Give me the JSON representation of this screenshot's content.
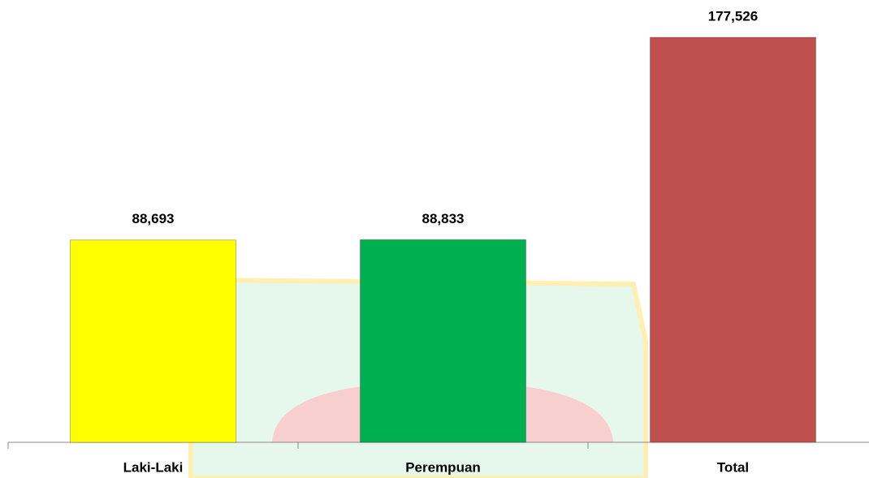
{
  "chart_data": {
    "type": "bar",
    "categories": [
      "Laki-Laki",
      "Perempuan",
      "Total"
    ],
    "values": [
      88693,
      88833,
      177526
    ],
    "value_labels": [
      "88,693",
      "88,833",
      "177,526"
    ],
    "colors": [
      "#ffff00",
      "#00b050",
      "#c0504d"
    ]
  }
}
